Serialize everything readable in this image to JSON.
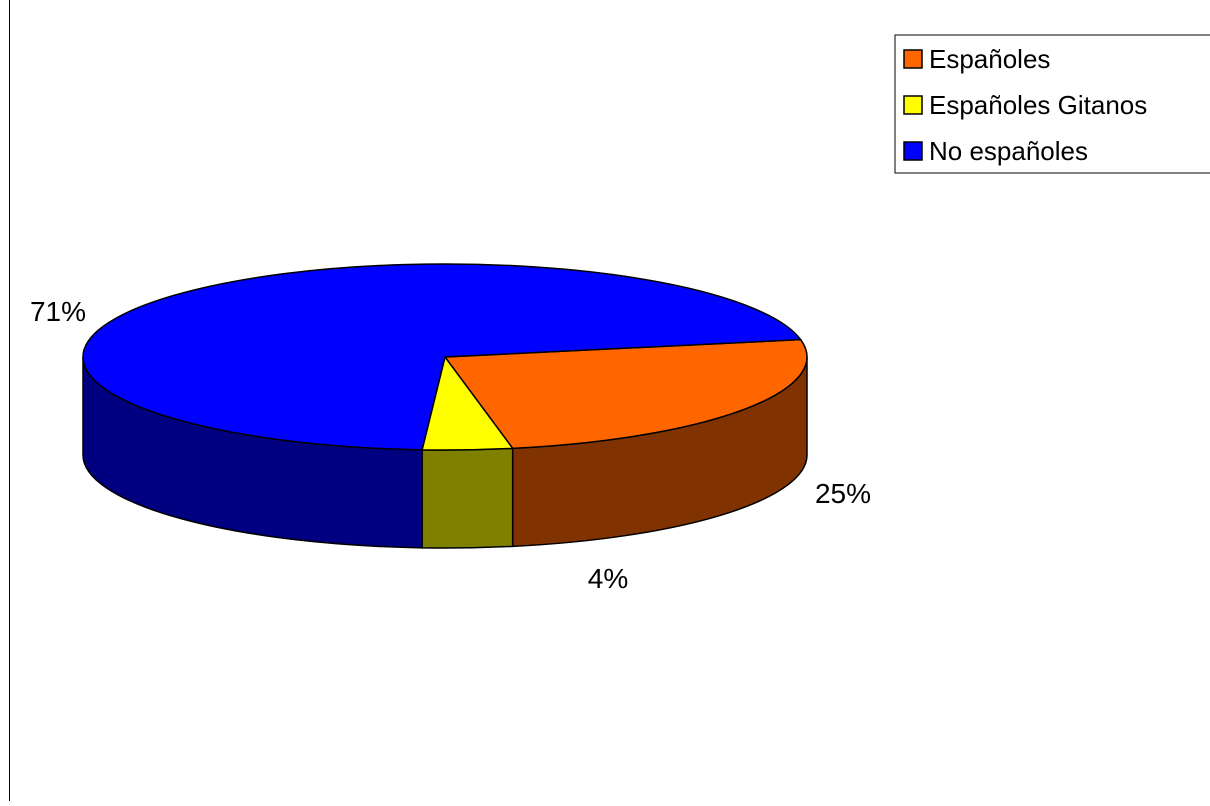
{
  "chart_data": {
    "type": "pie",
    "style": "3d",
    "title": "",
    "categories": [
      "Españoles",
      "Españoles Gitanos",
      "No españoles"
    ],
    "values": [
      25,
      4,
      71
    ],
    "data_labels": [
      "25%",
      "4%",
      "71%"
    ],
    "colors": [
      "#ff6600",
      "#ffff00",
      "#0000ff"
    ],
    "side_colors": [
      "#803300",
      "#808000",
      "#000080"
    ],
    "legend": {
      "position": "top-right",
      "entries": [
        "Españoles",
        "Españoles Gitanos",
        "No españoles"
      ]
    }
  }
}
